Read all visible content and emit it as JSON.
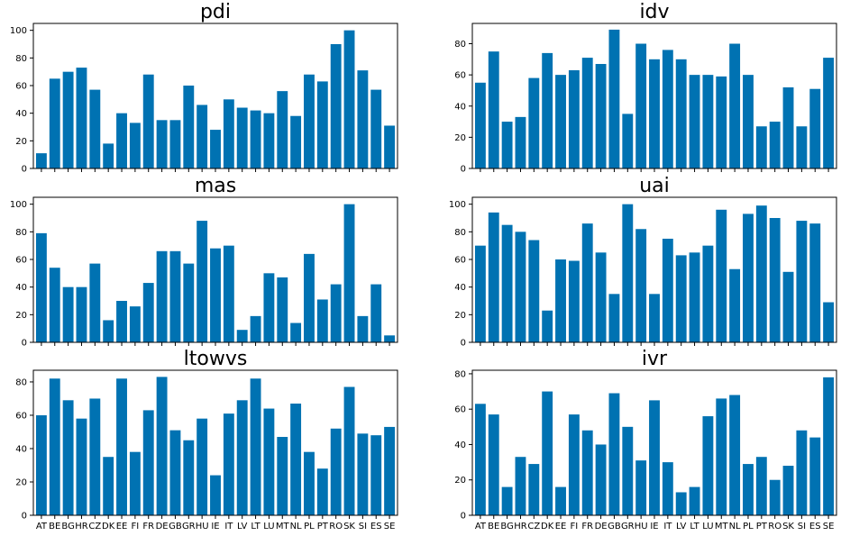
{
  "figure": {
    "bar_color": "#0072B2",
    "axis_color": "#000000",
    "background": "#ffffff"
  },
  "chart_data": [
    {
      "type": "bar",
      "title": "pdi",
      "ylim": [
        0,
        105
      ],
      "yticks": [
        0,
        20,
        40,
        60,
        80,
        100
      ],
      "show_xticklabels": false,
      "categories": [
        "AT",
        "BE",
        "BG",
        "HR",
        "CZ",
        "DK",
        "EE",
        "FI",
        "FR",
        "DE",
        "GB",
        "GR",
        "HU",
        "IE",
        "IT",
        "LV",
        "LT",
        "LU",
        "MT",
        "NL",
        "PL",
        "PT",
        "RO",
        "SK",
        "SI",
        "ES",
        "SE"
      ],
      "values": [
        11,
        65,
        70,
        73,
        57,
        18,
        40,
        33,
        68,
        35,
        35,
        60,
        46,
        28,
        50,
        44,
        42,
        40,
        56,
        38,
        68,
        63,
        90,
        100,
        71,
        57,
        31
      ]
    },
    {
      "type": "bar",
      "title": "idv",
      "ylim": [
        0,
        93
      ],
      "yticks": [
        0,
        20,
        40,
        60,
        80
      ],
      "show_xticklabels": false,
      "categories": [
        "AT",
        "BE",
        "BG",
        "HR",
        "CZ",
        "DK",
        "EE",
        "FI",
        "FR",
        "DE",
        "GB",
        "GR",
        "HU",
        "IE",
        "IT",
        "LV",
        "LT",
        "LU",
        "MT",
        "NL",
        "PL",
        "PT",
        "RO",
        "SK",
        "SI",
        "ES",
        "SE"
      ],
      "values": [
        55,
        75,
        30,
        33,
        58,
        74,
        60,
        63,
        71,
        67,
        89,
        35,
        80,
        70,
        76,
        70,
        60,
        60,
        59,
        80,
        60,
        27,
        30,
        52,
        27,
        51,
        71
      ]
    },
    {
      "type": "bar",
      "title": "mas",
      "ylim": [
        0,
        105
      ],
      "yticks": [
        0,
        20,
        40,
        60,
        80,
        100
      ],
      "show_xticklabels": false,
      "categories": [
        "AT",
        "BE",
        "BG",
        "HR",
        "CZ",
        "DK",
        "EE",
        "FI",
        "FR",
        "DE",
        "GB",
        "GR",
        "HU",
        "IE",
        "IT",
        "LV",
        "LT",
        "LU",
        "MT",
        "NL",
        "PL",
        "PT",
        "RO",
        "SK",
        "SI",
        "ES",
        "SE"
      ],
      "values": [
        79,
        54,
        40,
        40,
        57,
        16,
        30,
        26,
        43,
        66,
        66,
        57,
        88,
        68,
        70,
        9,
        19,
        50,
        47,
        14,
        64,
        31,
        42,
        100,
        19,
        42,
        5
      ]
    },
    {
      "type": "bar",
      "title": "uai",
      "ylim": [
        0,
        105
      ],
      "yticks": [
        0,
        20,
        40,
        60,
        80,
        100
      ],
      "show_xticklabels": false,
      "categories": [
        "AT",
        "BE",
        "BG",
        "HR",
        "CZ",
        "DK",
        "EE",
        "FI",
        "FR",
        "DE",
        "GB",
        "GR",
        "HU",
        "IE",
        "IT",
        "LV",
        "LT",
        "LU",
        "MT",
        "NL",
        "PL",
        "PT",
        "RO",
        "SK",
        "SI",
        "ES",
        "SE"
      ],
      "values": [
        70,
        94,
        85,
        80,
        74,
        23,
        60,
        59,
        86,
        65,
        35,
        100,
        82,
        35,
        75,
        63,
        65,
        70,
        96,
        53,
        93,
        99,
        90,
        51,
        88,
        86,
        29
      ]
    },
    {
      "type": "bar",
      "title": "ltowvs",
      "ylim": [
        0,
        87
      ],
      "yticks": [
        0,
        20,
        40,
        60,
        80
      ],
      "show_xticklabels": true,
      "categories": [
        "AT",
        "BE",
        "BG",
        "HR",
        "CZ",
        "DK",
        "EE",
        "FI",
        "FR",
        "DE",
        "GB",
        "GR",
        "HU",
        "IE",
        "IT",
        "LV",
        "LT",
        "LU",
        "MT",
        "NL",
        "PL",
        "PT",
        "RO",
        "SK",
        "SI",
        "ES",
        "SE"
      ],
      "values": [
        60,
        82,
        69,
        58,
        70,
        35,
        82,
        38,
        63,
        83,
        51,
        45,
        58,
        24,
        61,
        69,
        82,
        64,
        47,
        67,
        38,
        28,
        52,
        77,
        49,
        48,
        53
      ]
    },
    {
      "type": "bar",
      "title": "ivr",
      "ylim": [
        0,
        82
      ],
      "yticks": [
        0,
        20,
        40,
        60,
        80
      ],
      "show_xticklabels": true,
      "categories": [
        "AT",
        "BE",
        "BG",
        "HR",
        "CZ",
        "DK",
        "EE",
        "FI",
        "FR",
        "DE",
        "GB",
        "GR",
        "HU",
        "IE",
        "IT",
        "LV",
        "LT",
        "LU",
        "MT",
        "NL",
        "PL",
        "PT",
        "RO",
        "SK",
        "SI",
        "ES",
        "SE"
      ],
      "values": [
        63,
        57,
        16,
        33,
        29,
        70,
        16,
        57,
        48,
        40,
        69,
        50,
        31,
        65,
        30,
        13,
        16,
        56,
        66,
        68,
        29,
        33,
        20,
        28,
        48,
        44,
        78
      ]
    }
  ]
}
